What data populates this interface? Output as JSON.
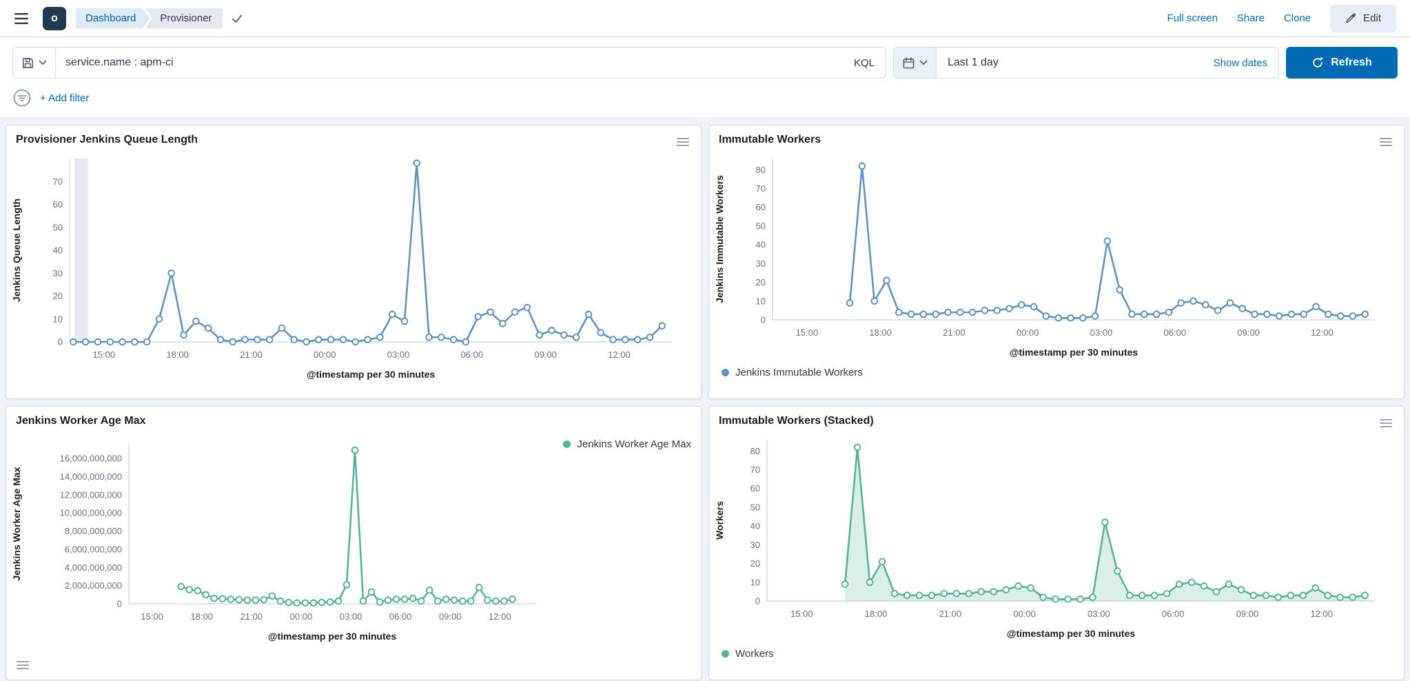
{
  "topbar": {
    "logo_letter": "o",
    "breadcrumbs": [
      {
        "label": "Dashboard"
      },
      {
        "label": "Provisioner"
      }
    ],
    "actions": [
      {
        "label": "Full screen"
      },
      {
        "label": "Share"
      },
      {
        "label": "Clone"
      }
    ],
    "edit_label": "Edit"
  },
  "querybar": {
    "query": "service.name : apm-ci",
    "kql_label": "KQL",
    "time_value": "Last 1 day",
    "show_dates_label": "Show dates",
    "refresh_label": "Refresh"
  },
  "filterbar": {
    "add_filter_label": "+ Add filter"
  },
  "colors": {
    "blue": "#6092C0",
    "green": "#54B399",
    "primary": "#006BB4"
  },
  "chart_data": [
    {
      "type": "line",
      "title": "Provisioner Jenkins Queue Length",
      "ylabel": "Jenkins Queue Length",
      "xlabel": "@timestamp per 30 minutes",
      "color": "#6092C0",
      "area": false,
      "legend": null,
      "ymax": 80,
      "xlim": [
        13.6,
        38.15
      ],
      "partial_band": [
        13.8,
        14.35
      ],
      "yticks": [
        {
          "v": 0,
          "label": "0"
        },
        {
          "v": 10,
          "label": "10"
        },
        {
          "v": 20,
          "label": "20"
        },
        {
          "v": 30,
          "label": "30"
        },
        {
          "v": 40,
          "label": "40"
        },
        {
          "v": 50,
          "label": "50"
        },
        {
          "v": 60,
          "label": "60"
        },
        {
          "v": 70,
          "label": "70"
        }
      ],
      "xticks": [
        {
          "v": 15,
          "label": "15:00"
        },
        {
          "v": 18,
          "label": "18:00"
        },
        {
          "v": 21,
          "label": "21:00"
        },
        {
          "v": 24,
          "label": "00:00"
        },
        {
          "v": 27,
          "label": "03:00"
        },
        {
          "v": 30,
          "label": "06:00"
        },
        {
          "v": 33,
          "label": "09:00"
        },
        {
          "v": 36,
          "label": "12:00"
        }
      ],
      "x": {
        "start": 13.75,
        "step": 0.5
      },
      "values": [
        0,
        0,
        0,
        0,
        0,
        0,
        0,
        10,
        30,
        3,
        9,
        6,
        1,
        0,
        1,
        1,
        1,
        6,
        1,
        0,
        1,
        1,
        1,
        0,
        1,
        2,
        12,
        9,
        78,
        2,
        2,
        1,
        0,
        11,
        13,
        8,
        13,
        15,
        3,
        5,
        3,
        2,
        12,
        4,
        1,
        1,
        1,
        2,
        7
      ]
    },
    {
      "type": "line",
      "title": "Immutable Workers",
      "ylabel": "Jenkins Immutable Workers",
      "xlabel": "@timestamp per 30 minutes",
      "color": "#6092C0",
      "area": false,
      "legend": {
        "label": "Jenkins Immutable Workers",
        "position": "bottom"
      },
      "ymax": 86,
      "xlim": [
        13.6,
        38.15
      ],
      "yticks": [
        {
          "v": 0,
          "label": "0"
        },
        {
          "v": 10,
          "label": "10"
        },
        {
          "v": 20,
          "label": "20"
        },
        {
          "v": 30,
          "label": "30"
        },
        {
          "v": 40,
          "label": "40"
        },
        {
          "v": 50,
          "label": "50"
        },
        {
          "v": 60,
          "label": "60"
        },
        {
          "v": 70,
          "label": "70"
        },
        {
          "v": 80,
          "label": "80"
        }
      ],
      "xticks": [
        {
          "v": 15,
          "label": "15:00"
        },
        {
          "v": 18,
          "label": "18:00"
        },
        {
          "v": 21,
          "label": "21:00"
        },
        {
          "v": 24,
          "label": "00:00"
        },
        {
          "v": 27,
          "label": "03:00"
        },
        {
          "v": 30,
          "label": "06:00"
        },
        {
          "v": 33,
          "label": "09:00"
        },
        {
          "v": 36,
          "label": "12:00"
        }
      ],
      "x": {
        "start": 16.75,
        "step": 0.5
      },
      "values": [
        9,
        82,
        10,
        21,
        4,
        3,
        3,
        3,
        4,
        4,
        4,
        5,
        5,
        6,
        8,
        7,
        2,
        1,
        1,
        1,
        2,
        42,
        16,
        3,
        3,
        3,
        4,
        9,
        10,
        8,
        5,
        9,
        6,
        3,
        3,
        2,
        3,
        3,
        7,
        3,
        2,
        2,
        3
      ]
    },
    {
      "type": "line",
      "title": "Jenkins Worker Age Max",
      "ylabel": "Jenkins Worker Age Max",
      "xlabel": "@timestamp per 30 minutes",
      "color": "#54B399",
      "area": false,
      "legend": {
        "label": "Jenkins Worker Age Max",
        "position": "top-right"
      },
      "ymax": 17600000000,
      "xlim": [
        13.6,
        38.15
      ],
      "yticks": [
        {
          "v": 0,
          "label": "0"
        },
        {
          "v": 2000000000,
          "label": "2,000,000,000"
        },
        {
          "v": 4000000000,
          "label": "4,000,000,000"
        },
        {
          "v": 6000000000,
          "label": "6,000,000,000"
        },
        {
          "v": 8000000000,
          "label": "8,000,000,000"
        },
        {
          "v": 10000000000,
          "label": "10,000,000,000"
        },
        {
          "v": 12000000000,
          "label": "12,000,000,000"
        },
        {
          "v": 14000000000,
          "label": "14,000,000,000"
        },
        {
          "v": 16000000000,
          "label": "16,000,000,000"
        }
      ],
      "xticks": [
        {
          "v": 15,
          "label": "15:00"
        },
        {
          "v": 18,
          "label": "18:00"
        },
        {
          "v": 21,
          "label": "21:00"
        },
        {
          "v": 24,
          "label": "00:00"
        },
        {
          "v": 27,
          "label": "03:00"
        },
        {
          "v": 30,
          "label": "06:00"
        },
        {
          "v": 33,
          "label": "09:00"
        },
        {
          "v": 36,
          "label": "12:00"
        }
      ],
      "x": {
        "start": 16.75,
        "step": 0.5
      },
      "values": [
        1900000000,
        1550000000,
        1450000000,
        1000000000,
        600000000,
        550000000,
        500000000,
        450000000,
        400000000,
        400000000,
        450000000,
        850000000,
        300000000,
        150000000,
        100000000,
        100000000,
        100000000,
        150000000,
        200000000,
        300000000,
        2100000000,
        16900000000,
        300000000,
        1300000000,
        200000000,
        400000000,
        500000000,
        500000000,
        600000000,
        300000000,
        1500000000,
        300000000,
        500000000,
        400000000,
        300000000,
        300000000,
        1800000000,
        400000000,
        300000000,
        300000000,
        500000000
      ]
    },
    {
      "type": "area",
      "title": "Immutable Workers (Stacked)",
      "ylabel": "Workers",
      "xlabel": "@timestamp per 30 minutes",
      "color": "#54B399",
      "area": true,
      "legend": {
        "label": "Workers",
        "position": "bottom"
      },
      "ymax": 86,
      "xlim": [
        13.6,
        38.15
      ],
      "yticks": [
        {
          "v": 0,
          "label": "0"
        },
        {
          "v": 10,
          "label": "10"
        },
        {
          "v": 20,
          "label": "20"
        },
        {
          "v": 30,
          "label": "30"
        },
        {
          "v": 40,
          "label": "40"
        },
        {
          "v": 50,
          "label": "50"
        },
        {
          "v": 60,
          "label": "60"
        },
        {
          "v": 70,
          "label": "70"
        },
        {
          "v": 80,
          "label": "80"
        }
      ],
      "xticks": [
        {
          "v": 15,
          "label": "15:00"
        },
        {
          "v": 18,
          "label": "18:00"
        },
        {
          "v": 21,
          "label": "21:00"
        },
        {
          "v": 24,
          "label": "00:00"
        },
        {
          "v": 27,
          "label": "03:00"
        },
        {
          "v": 30,
          "label": "06:00"
        },
        {
          "v": 33,
          "label": "09:00"
        },
        {
          "v": 36,
          "label": "12:00"
        }
      ],
      "x": {
        "start": 16.75,
        "step": 0.5
      },
      "values": [
        9,
        82,
        10,
        21,
        4,
        3,
        3,
        3,
        4,
        4,
        4,
        5,
        5,
        6,
        8,
        7,
        2,
        1,
        1,
        1,
        2,
        42,
        16,
        3,
        3,
        3,
        4,
        9,
        10,
        8,
        5,
        9,
        6,
        3,
        3,
        2,
        3,
        3,
        7,
        3,
        2,
        2,
        3
      ]
    }
  ]
}
